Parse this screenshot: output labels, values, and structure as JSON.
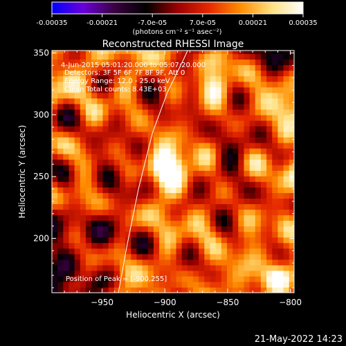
{
  "chart_data": {
    "type": "heatmap",
    "title": "Reconstructed RHESSI Image",
    "xlabel": "Heliocentric X (arcsec)",
    "ylabel": "Heliocentric Y (arcsec)",
    "xlim": [
      -990,
      -797
    ],
    "ylim": [
      156,
      352
    ],
    "x_ticks": [
      -950,
      -900,
      -850,
      -800
    ],
    "y_ticks": [
      200,
      250,
      300,
      350
    ],
    "colorbar": {
      "range": [
        -0.00035,
        0.00035
      ],
      "ticks": [
        "-0.00035",
        "-0.00021",
        "-7.0e-05",
        "7.0e-05",
        "0.00021",
        "0.00035"
      ],
      "label": "(photons cm⁻² s⁻¹ asec⁻²)",
      "colors": [
        "#0000ff",
        "#6a00d8",
        "#3a0040",
        "#000000",
        "#9a0000",
        "#e52800",
        "#ff8c00",
        "#ffe080",
        "#ffffff"
      ]
    },
    "annotations": {
      "time_range": "4-Jun-2015 05:01:20.000 to 05:07:20.000",
      "detectors": "Detectors: 3F 5F 6F 7F 8F 9F, Att 0",
      "energy_range": "Energy Range: 12.0 - 25.0 keV",
      "clean_counts": "Clean    Total counts: 8.43E+03",
      "peak": "Position of Peak = [-900,255]"
    },
    "peak": {
      "x": -900,
      "y": 255
    },
    "sources": [
      {
        "x": -900,
        "y": 257,
        "sigma": 11,
        "amplitude": 0.00035
      },
      {
        "x": -860,
        "y": 322,
        "sigma": 9,
        "amplitude": 0.00022
      },
      {
        "x": -808,
        "y": 308,
        "sigma": 10,
        "amplitude": 0.00024
      },
      {
        "x": -812,
        "y": 168,
        "sigma": 9,
        "amplitude": 0.00026
      },
      {
        "x": -975,
        "y": 335,
        "sigma": 12,
        "amplitude": 0.0002
      }
    ],
    "limb_curve": {
      "x": [
        -937,
        -930,
        -921,
        -910,
        -898,
        -885,
        -876
      ],
      "y": [
        156,
        195,
        240,
        285,
        318,
        345,
        365
      ]
    },
    "timestamp": "21-May-2022 14:23"
  }
}
